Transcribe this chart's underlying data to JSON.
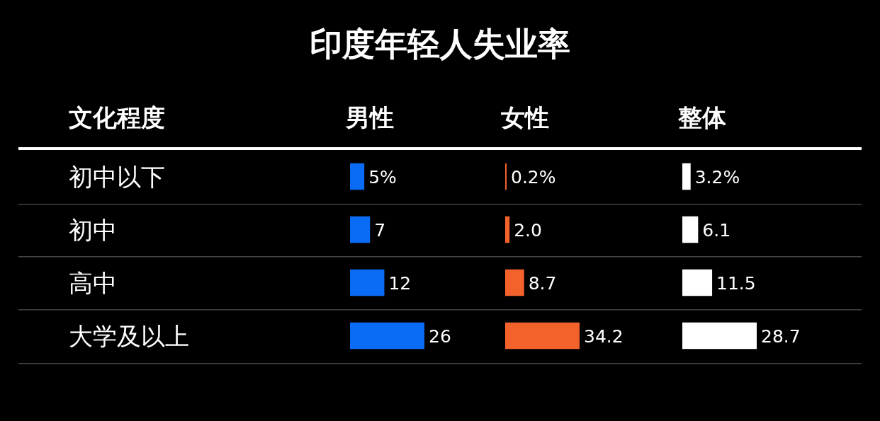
{
  "chart_data": [
    {
      "type": "bar",
      "orientation": "horizontal",
      "title": "印度年轻人失业率",
      "ylabel": "文化程度",
      "xlabel": "男性",
      "categories": [
        "初中以下",
        "初中",
        "高中",
        "大学及以上"
      ],
      "values": [
        5,
        7,
        12,
        26
      ],
      "value_labels": [
        "5%",
        "7",
        "12",
        "26"
      ],
      "color": "#0a6cf5"
    },
    {
      "type": "bar",
      "orientation": "horizontal",
      "xlabel": "女性",
      "categories": [
        null,
        null,
        null,
        null
      ],
      "values": [
        0.2,
        2.0,
        8.7,
        34.2
      ],
      "value_labels": [
        "0.2%",
        "2.0",
        "8.7",
        "34.2"
      ],
      "color": "#f4622c"
    },
    {
      "type": "bar",
      "orientation": "horizontal",
      "xlabel": "整体",
      "categories": [
        null,
        null,
        null,
        null
      ],
      "values": [
        3.2,
        6.1,
        11.5,
        28.7
      ],
      "value_labels": [
        "3.2%",
        "6.1",
        "11.5",
        "28.7"
      ],
      "color": "#ffffff"
    }
  ]
}
